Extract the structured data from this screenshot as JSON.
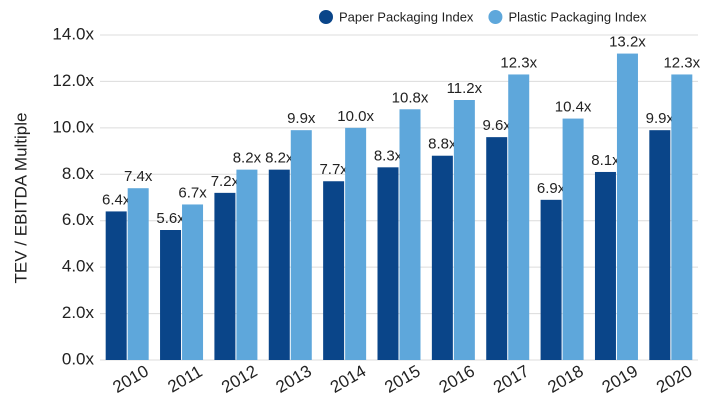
{
  "chart_data": {
    "type": "bar",
    "y_label": "TEV / EBITDA Multiple",
    "categories": [
      "2010",
      "2011",
      "2012",
      "2013",
      "2014",
      "2015",
      "2016",
      "2017",
      "2018",
      "2019",
      "2020"
    ],
    "series": [
      {
        "name": "Paper Packaging Index",
        "color": "#0a4589",
        "values": [
          6.4,
          5.6,
          7.2,
          8.2,
          7.7,
          8.3,
          8.8,
          9.6,
          6.9,
          8.1,
          9.9
        ],
        "value_labels": [
          "6.4x",
          "5.6x",
          "7.2x",
          "8.2x",
          "7.7x",
          "8.3x",
          "8.8x",
          "9.6x",
          "6.9x",
          "8.1x",
          "9.9x"
        ]
      },
      {
        "name": "Plastic Packaging Index",
        "color": "#5ea7db",
        "values": [
          7.4,
          6.7,
          8.2,
          9.9,
          10.0,
          10.8,
          11.2,
          12.3,
          10.4,
          13.2,
          12.3
        ],
        "value_labels": [
          "7.4x",
          "6.7x",
          "8.2x",
          "9.9x",
          "10.0x",
          "10.8x",
          "11.2x",
          "12.3x",
          "10.4x",
          "13.2x",
          "12.3x"
        ]
      }
    ],
    "ylim": [
      0,
      14
    ],
    "yticks": [
      {
        "value": 0,
        "label": "0.0x"
      },
      {
        "value": 2,
        "label": "2.0x"
      },
      {
        "value": 4,
        "label": "4.0x"
      },
      {
        "value": 6,
        "label": "6.0x"
      },
      {
        "value": 8,
        "label": "8.0x"
      },
      {
        "value": 10,
        "label": "10.0x"
      },
      {
        "value": 12,
        "label": "12.0x"
      },
      {
        "value": 14,
        "label": "14.0x"
      }
    ],
    "grid": true,
    "legend": "top-right"
  }
}
